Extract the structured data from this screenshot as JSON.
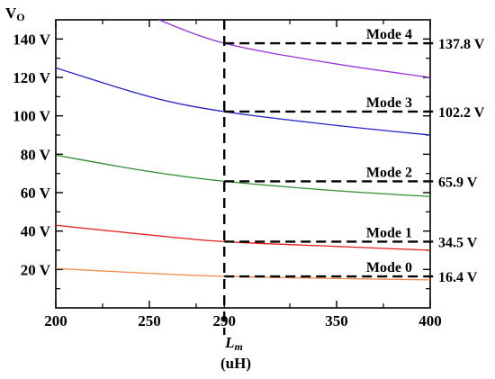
{
  "chart_data": {
    "type": "line",
    "title": "",
    "ylabel": "V",
    "ylabel_sub": "O",
    "xlabel": "L",
    "xlabel_sub": "m",
    "xunit": "(uH)",
    "xlim": [
      200,
      400
    ],
    "ylim": [
      0,
      150
    ],
    "xticks": [
      200,
      250,
      290,
      350,
      400
    ],
    "yticks": [
      20,
      40,
      60,
      80,
      100,
      120,
      140
    ],
    "ytick_labels": [
      "20 V",
      "40 V",
      "60 V",
      "80 V",
      "100 V",
      "120 V",
      "140 V"
    ],
    "marker_x": 290,
    "series": [
      {
        "name": "Mode 0",
        "color": "#f08a4b",
        "x": [
          200,
          250,
          290,
          350,
          400
        ],
        "y": [
          20.5,
          18.0,
          16.4,
          15.3,
          14.6
        ],
        "marker_value": 16.4,
        "marker_label": "16.4 V"
      },
      {
        "name": "Mode 1",
        "color": "#e41a1c",
        "x": [
          200,
          250,
          290,
          350,
          400
        ],
        "y": [
          43.0,
          38.0,
          34.5,
          32.0,
          30.0
        ],
        "marker_value": 34.5,
        "marker_label": "34.5 V"
      },
      {
        "name": "Mode 2",
        "color": "#2e8b2e",
        "x": [
          200,
          250,
          290,
          350,
          400
        ],
        "y": [
          79.5,
          71.0,
          65.9,
          61.0,
          58.0
        ],
        "marker_value": 65.9,
        "marker_label": "65.9 V"
      },
      {
        "name": "Mode 3",
        "color": "#2323c8",
        "x": [
          200,
          250,
          290,
          350,
          400
        ],
        "y": [
          125.0,
          110.0,
          102.2,
          95.0,
          90.0
        ],
        "marker_value": 102.2,
        "marker_label": "102.2 V"
      },
      {
        "name": "Mode 4",
        "color": "#9b30d9",
        "x": [
          250,
          290,
          350,
          400
        ],
        "y": [
          152.0,
          137.8,
          127.0,
          120.0
        ],
        "marker_value": 137.8,
        "marker_label": "137.8 V"
      }
    ]
  }
}
